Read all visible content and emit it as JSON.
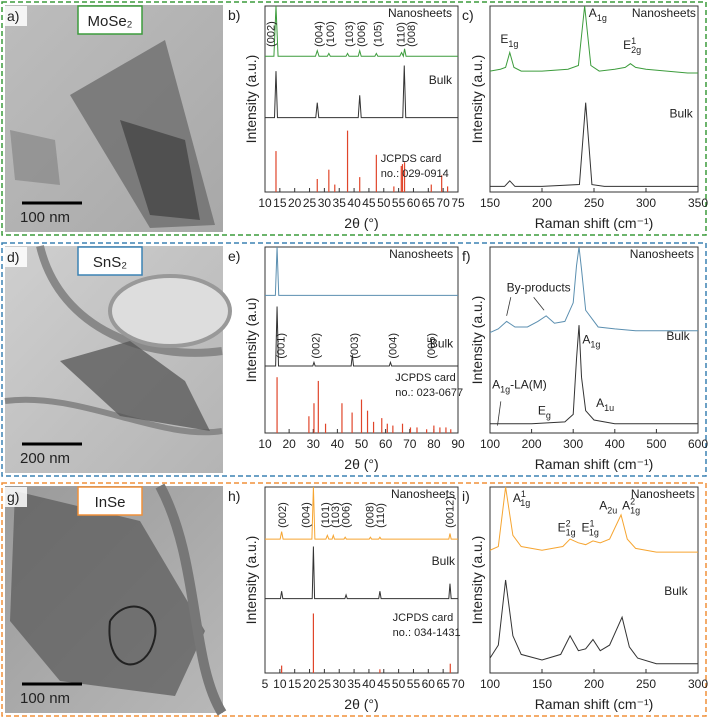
{
  "micrographs": [
    {
      "panel_label": "a)",
      "title": "MoSe₂",
      "scale_bar": "100 nm",
      "color": "#3c9c3c"
    },
    {
      "panel_label": "d)",
      "title": "SnS₂",
      "scale_bar": "200 nm",
      "color": "#3b82b4"
    },
    {
      "panel_label": "g)",
      "title": "InSe",
      "scale_bar": "100 nm",
      "color": "#f0913a"
    }
  ],
  "chart_data": [
    {
      "type": "line",
      "panel_label": "b)",
      "xlabel": "2θ (°)",
      "ylabel": "Intensity (a.u.)",
      "xlim": [
        10,
        75
      ],
      "xticks": [
        10,
        15,
        20,
        25,
        30,
        35,
        40,
        45,
        50,
        55,
        60,
        65,
        70,
        75
      ],
      "ylim": [
        0,
        100
      ],
      "series": [
        {
          "name": "Nanosheets",
          "color": "#3c9c3c",
          "x": [
            10,
            13.0,
            13.7,
            14.4,
            27,
            27.6,
            28.2,
            31,
            31.5,
            32,
            37.3,
            37.8,
            38.3,
            41.4,
            41.9,
            42.4,
            47,
            47.5,
            48,
            55.4,
            56,
            56.6,
            57,
            57.5,
            75
          ],
          "values": [
            73,
            73,
            100,
            73,
            73,
            76,
            73,
            73,
            74.5,
            73,
            73,
            74.5,
            73,
            73,
            76,
            73,
            73,
            74.5,
            73,
            73,
            75,
            73,
            77,
            73,
            73
          ]
        },
        {
          "name": "Bulk",
          "color": "#333333",
          "x": [
            10,
            13.2,
            13.7,
            14.2,
            27.1,
            27.6,
            28.1,
            41.4,
            41.9,
            42.4,
            56.4,
            56.9,
            57.4,
            75
          ],
          "values": [
            40,
            40,
            65,
            40,
            40,
            48,
            40,
            40,
            52,
            40,
            40,
            68,
            40,
            40
          ]
        }
      ],
      "sticks": {
        "label_lines": [
          "JCPDS card",
          "no.: 029-0914"
        ],
        "color": "#e0452a",
        "x": [
          13.7,
          27.6,
          31.5,
          33.5,
          37.8,
          41.9,
          47.5,
          53.4,
          55.9,
          56.3,
          57,
          66,
          69.5,
          71.5
        ],
        "values": [
          22,
          7,
          12,
          4,
          33,
          8,
          20,
          3,
          14,
          15,
          16,
          4,
          9,
          3
        ]
      },
      "peak_labels": [
        "(002)",
        "(004)",
        "(100)",
        "(103)",
        "(006)",
        "(105)",
        "(110)",
        "(008)"
      ],
      "annotations": []
    },
    {
      "type": "line",
      "panel_label": "c)",
      "xlabel": "Raman shift (cm⁻¹)",
      "ylabel": "Intensity (a.u.)",
      "xlim": [
        150,
        350
      ],
      "xticks": [
        150,
        200,
        250,
        300,
        350
      ],
      "ylim": [
        0,
        100
      ],
      "series": [
        {
          "name": "Nanosheets",
          "color": "#3c9c3c",
          "x": [
            150,
            160,
            165,
            169,
            173,
            180,
            200,
            225,
            235,
            241,
            247,
            255,
            270,
            280,
            285,
            290,
            300,
            320,
            340,
            350
          ],
          "values": [
            65,
            66,
            67,
            75,
            67,
            65,
            65,
            66,
            68,
            100,
            68,
            65,
            66,
            67,
            69,
            67,
            66,
            65,
            64,
            64
          ]
        },
        {
          "name": "Bulk",
          "color": "#333333",
          "x": [
            150,
            164,
            169,
            174,
            200,
            236,
            242,
            248,
            260,
            300,
            350
          ],
          "values": [
            3,
            3,
            6,
            3,
            3,
            4,
            48,
            4,
            3,
            3,
            3
          ]
        }
      ],
      "annotations": [
        {
          "base": "E",
          "sub": "1g"
        },
        {
          "base": "A",
          "sub": "1g"
        },
        {
          "base": "E",
          "sup": "1",
          "sub": "2g"
        }
      ]
    },
    {
      "type": "line",
      "panel_label": "e)",
      "xlabel": "2θ (°)",
      "ylabel": "Intensity (a.u)",
      "xlim": [
        10,
        90
      ],
      "xticks": [
        10,
        20,
        30,
        40,
        50,
        60,
        70,
        80,
        90
      ],
      "ylim": [
        0,
        100
      ],
      "series": [
        {
          "name": "Nanosheets",
          "color": "#5b8fb0",
          "x": [
            10,
            14.3,
            15,
            15.7,
            30,
            50,
            70,
            90
          ],
          "values": [
            74,
            74,
            100,
            74,
            74,
            74,
            74,
            74
          ]
        },
        {
          "name": "Bulk",
          "color": "#333333",
          "x": [
            10,
            14.4,
            15,
            15.6,
            29.8,
            30.3,
            30.8,
            45.7,
            46.2,
            46.7,
            61.5,
            62,
            62.5,
            90
          ],
          "values": [
            36,
            36,
            68,
            36,
            36,
            38,
            36,
            36,
            42,
            36,
            36,
            38,
            36,
            36
          ]
        }
      ],
      "sticks": {
        "label_lines": [
          "JCPDS card",
          "no.: 023-0677"
        ],
        "color": "#e0452a",
        "x": [
          15,
          28.2,
          30.3,
          32.1,
          35.1,
          41.9,
          46.1,
          50,
          52.5,
          55,
          58.4,
          60.7,
          63,
          67,
          70.3,
          73,
          77,
          80,
          82.5,
          85,
          87
        ],
        "values": [
          30,
          9,
          16,
          28,
          5,
          16,
          11,
          18,
          12,
          6,
          8,
          5,
          4,
          5,
          3,
          3,
          2,
          4,
          3,
          3,
          2
        ]
      },
      "peak_labels": [
        "(001)",
        "(002)",
        "(003)",
        "(004)",
        "(005)"
      ],
      "annotations": []
    },
    {
      "type": "line",
      "panel_label": "f)",
      "xlabel": "Raman shift (cm⁻¹)",
      "ylabel": "Intensity (a.u.)",
      "xlim": [
        100,
        600
      ],
      "xticks": [
        100,
        200,
        300,
        400,
        500,
        600
      ],
      "ylim": [
        0,
        100
      ],
      "series": [
        {
          "name": "Nanosheets",
          "color": "#5b8fb0",
          "x": [
            100,
            120,
            140,
            160,
            190,
            215,
            235,
            255,
            280,
            300,
            308,
            314,
            320,
            330,
            360,
            400,
            450,
            500,
            550,
            600
          ],
          "values": [
            54,
            56,
            60,
            57,
            57,
            60,
            63,
            59,
            60,
            70,
            90,
            100,
            88,
            66,
            57,
            56,
            55,
            55,
            55,
            55
          ]
        },
        {
          "name": "Bulk",
          "color": "#333333",
          "x": [
            100,
            200,
            280,
            300,
            308,
            314,
            320,
            330,
            350,
            400,
            500,
            600
          ],
          "values": [
            5,
            5,
            6,
            10,
            40,
            58,
            30,
            12,
            7,
            5,
            5,
            5
          ]
        }
      ],
      "annotations": [
        {
          "base": "By-products"
        },
        {
          "base": "A",
          "sub": "1g"
        },
        {
          "base": "A",
          "sub": "1g",
          "tail": "-LA(M)"
        },
        {
          "base": "E",
          "sub": "g"
        },
        {
          "base": "A",
          "sub": "1u"
        }
      ]
    },
    {
      "type": "line",
      "panel_label": "h)",
      "xlabel": "2θ (°)",
      "ylabel": "Intensity (a.u.)",
      "xlim": [
        5,
        70
      ],
      "xticks": [
        5,
        10,
        15,
        20,
        25,
        30,
        35,
        40,
        45,
        50,
        55,
        60,
        65,
        70
      ],
      "ylim": [
        0,
        100
      ],
      "series": [
        {
          "name": "Nanosheets",
          "color": "#f6a531",
          "x": [
            5,
            10.1,
            10.6,
            11.1,
            20.8,
            21.3,
            21.8,
            25.5,
            26,
            26.5,
            27.6,
            28,
            28.4,
            31.6,
            32,
            32.4,
            40.1,
            40.5,
            40.9,
            43.3,
            43.7,
            44.1,
            66.9,
            67.3,
            67.7,
            70
          ],
          "values": [
            72,
            72,
            76,
            72,
            72,
            100,
            72,
            72,
            74,
            72,
            72,
            74,
            72,
            72,
            73,
            72,
            72,
            73,
            72,
            72,
            73,
            72,
            72,
            75,
            72,
            72
          ]
        },
        {
          "name": "Bulk",
          "color": "#333333",
          "x": [
            5,
            10.2,
            10.6,
            11,
            20.9,
            21.3,
            21.7,
            31.9,
            32.3,
            32.7,
            43.3,
            43.7,
            44.1,
            66.9,
            67.3,
            67.7,
            70
          ],
          "values": [
            40,
            40,
            44,
            40,
            40,
            68,
            40,
            40,
            42,
            40,
            40,
            44,
            40,
            40,
            48,
            40,
            40
          ]
        }
      ],
      "sticks": {
        "label_lines": [
          "JCPDS card",
          "no.: 034-1431"
        ],
        "color": "#e0452a",
        "x": [
          10.6,
          21.3,
          43.7,
          67.4
        ],
        "values": [
          4,
          32,
          2,
          5
        ]
      },
      "peak_labels": [
        "(002)",
        "(004)",
        "(101)",
        "(103)",
        "(006)",
        "(008)",
        "(110)",
        "(0012)"
      ],
      "annotations": []
    },
    {
      "type": "line",
      "panel_label": "i)",
      "xlabel": "Raman shift (cm⁻¹)",
      "ylabel": "Intensity (a.u.)",
      "xlim": [
        100,
        300
      ],
      "xticks": [
        100,
        150,
        200,
        250,
        300
      ],
      "ylim": [
        0,
        100
      ],
      "series": [
        {
          "name": "Nanosheets",
          "color": "#f6a531",
          "x": [
            100,
            108,
            115,
            122,
            130,
            150,
            170,
            177,
            185,
            192,
            199,
            206,
            215,
            226,
            232,
            240,
            260,
            280,
            300
          ],
          "values": [
            66,
            68,
            100,
            74,
            68,
            66,
            68,
            72,
            70,
            69,
            71,
            70,
            72,
            85,
            72,
            67,
            65,
            65,
            65
          ]
        },
        {
          "name": "Bulk",
          "color": "#333333",
          "x": [
            100,
            108,
            115,
            122,
            130,
            150,
            168,
            177,
            185,
            192,
            199,
            206,
            215,
            227,
            234,
            242,
            260,
            280,
            300
          ],
          "values": [
            8,
            15,
            50,
            20,
            10,
            7,
            10,
            20,
            12,
            13,
            18,
            12,
            15,
            30,
            14,
            8,
            5,
            5,
            5
          ]
        }
      ],
      "annotations": [
        {
          "base": "A",
          "sup": "1",
          "sub": "1g"
        },
        {
          "base": "E",
          "sup": "2",
          "sub": "1g"
        },
        {
          "base": "E",
          "sup": "1",
          "sub": "1g"
        },
        {
          "base": "A",
          "sub": "2u"
        },
        {
          "base": "A",
          "sup": "2",
          "sub": "1g"
        }
      ]
    }
  ]
}
